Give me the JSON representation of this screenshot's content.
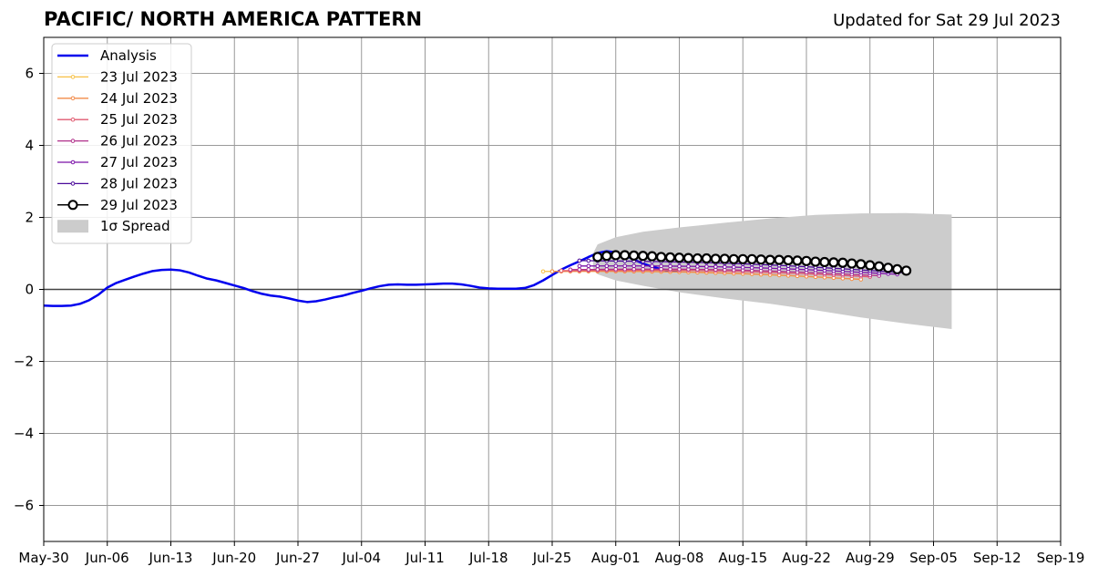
{
  "header": {
    "title": "PACIFIC/ NORTH AMERICA PATTERN",
    "updated": "Updated for Sat 29 Jul 2023"
  },
  "chart_data": {
    "type": "line",
    "x_ticks": [
      "May-30",
      "Jun-06",
      "Jun-13",
      "Jun-20",
      "Jun-27",
      "Jul-04",
      "Jul-11",
      "Jul-18",
      "Jul-25",
      "Aug-01",
      "Aug-08",
      "Aug-15",
      "Aug-22",
      "Aug-29",
      "Sep-05",
      "Sep-12",
      "Sep-19"
    ],
    "xlim_days": [
      0,
      112
    ],
    "ylim": [
      -7,
      7
    ],
    "y_ticks": [
      6,
      4,
      2,
      0,
      -2,
      -4,
      -6
    ],
    "y_tick_labels": [
      "6",
      "4",
      "2",
      "0",
      "−2",
      "−4",
      "−6"
    ],
    "grid": true,
    "legend_position": "upper-left",
    "analysis": {
      "name": "Analysis",
      "color": "#0000ee",
      "points": [
        [
          0,
          -0.45
        ],
        [
          1,
          -0.46
        ],
        [
          2,
          -0.46
        ],
        [
          3,
          -0.45
        ],
        [
          4,
          -0.4
        ],
        [
          5,
          -0.3
        ],
        [
          6,
          -0.15
        ],
        [
          7,
          0.05
        ],
        [
          8,
          0.18
        ],
        [
          9,
          0.27
        ],
        [
          10,
          0.36
        ],
        [
          11,
          0.44
        ],
        [
          12,
          0.51
        ],
        [
          13,
          0.54
        ],
        [
          14,
          0.55
        ],
        [
          15,
          0.53
        ],
        [
          16,
          0.47
        ],
        [
          17,
          0.38
        ],
        [
          18,
          0.3
        ],
        [
          19,
          0.25
        ],
        [
          20,
          0.18
        ],
        [
          21,
          0.11
        ],
        [
          22,
          0.04
        ],
        [
          23,
          -0.05
        ],
        [
          24,
          -0.12
        ],
        [
          25,
          -0.17
        ],
        [
          26,
          -0.2
        ],
        [
          27,
          -0.25
        ],
        [
          28,
          -0.31
        ],
        [
          29,
          -0.35
        ],
        [
          30,
          -0.33
        ],
        [
          31,
          -0.28
        ],
        [
          32,
          -0.22
        ],
        [
          33,
          -0.17
        ],
        [
          34,
          -0.1
        ],
        [
          35,
          -0.04
        ],
        [
          36,
          0.03
        ],
        [
          37,
          0.09
        ],
        [
          38,
          0.13
        ],
        [
          39,
          0.14
        ],
        [
          40,
          0.13
        ],
        [
          41,
          0.13
        ],
        [
          42,
          0.14
        ],
        [
          43,
          0.15
        ],
        [
          44,
          0.16
        ],
        [
          45,
          0.16
        ],
        [
          46,
          0.14
        ],
        [
          47,
          0.1
        ],
        [
          48,
          0.05
        ],
        [
          49,
          0.03
        ],
        [
          50,
          0.02
        ],
        [
          51,
          0.02
        ],
        [
          52,
          0.02
        ],
        [
          53,
          0.04
        ],
        [
          54,
          0.12
        ],
        [
          55,
          0.25
        ],
        [
          56,
          0.4
        ],
        [
          57,
          0.55
        ],
        [
          58,
          0.67
        ],
        [
          59,
          0.78
        ],
        [
          60,
          0.9
        ],
        [
          61,
          1.01
        ],
        [
          62,
          1.06
        ],
        [
          63,
          1.03
        ],
        [
          64,
          0.95
        ],
        [
          65,
          0.83
        ],
        [
          66,
          0.72
        ],
        [
          67,
          0.63
        ],
        [
          68,
          0.56
        ],
        [
          69,
          0.52
        ],
        [
          70,
          0.5
        ]
      ]
    },
    "spread": {
      "name": "1σ Spread",
      "color": "#cccccc",
      "upper": [
        [
          60.5,
          1.0
        ],
        [
          61,
          1.25
        ],
        [
          63,
          1.45
        ],
        [
          66,
          1.6
        ],
        [
          70,
          1.72
        ],
        [
          75,
          1.85
        ],
        [
          80,
          1.97
        ],
        [
          85,
          2.07
        ],
        [
          90,
          2.11
        ],
        [
          95,
          2.12
        ],
        [
          100,
          2.08
        ]
      ],
      "lower": [
        [
          100,
          -1.1
        ],
        [
          95,
          -0.95
        ],
        [
          90,
          -0.78
        ],
        [
          85,
          -0.58
        ],
        [
          80,
          -0.4
        ],
        [
          75,
          -0.25
        ],
        [
          70,
          -0.08
        ],
        [
          66,
          0.1
        ],
        [
          63,
          0.25
        ],
        [
          61,
          0.42
        ],
        [
          60.5,
          0.6
        ]
      ]
    },
    "forecasts": [
      {
        "name": "23 Jul 2023",
        "color": "#f7c045",
        "start": 55,
        "end": 90,
        "y0": 0.5,
        "y1": 0.28,
        "markers": "small"
      },
      {
        "name": "24 Jul 2023",
        "color": "#f28b4a",
        "start": 56,
        "end": 90,
        "y0": 0.5,
        "y1": 0.28,
        "markers": "small"
      },
      {
        "name": "25 Jul 2023",
        "color": "#e05a70",
        "start": 57,
        "end": 91,
        "y0": 0.52,
        "y1": 0.35,
        "markers": "small"
      },
      {
        "name": "26 Jul 2023",
        "color": "#b0308a",
        "start": 58,
        "end": 92,
        "y0": 0.55,
        "y1": 0.38,
        "markers": "small"
      },
      {
        "name": "27 Jul 2023",
        "color": "#7b10a8",
        "start": 59,
        "end": 94,
        "y0": 0.65,
        "y1": 0.42,
        "markers": "small"
      },
      {
        "name": "28 Jul 2023",
        "color": "#4b0a9a",
        "start": 59,
        "end": 95,
        "y0": 0.8,
        "y1": 0.46,
        "markers": "small"
      },
      {
        "name": "29 Jul 2023",
        "color": "#000000",
        "start": 61,
        "end": 95,
        "points": [
          0.9,
          0.93,
          0.95,
          0.95,
          0.94,
          0.93,
          0.92,
          0.9,
          0.89,
          0.88,
          0.87,
          0.86,
          0.86,
          0.85,
          0.85,
          0.84,
          0.84,
          0.84,
          0.83,
          0.82,
          0.82,
          0.81,
          0.8,
          0.79,
          0.77,
          0.76,
          0.75,
          0.74,
          0.72,
          0.7,
          0.67,
          0.64,
          0.6,
          0.56,
          0.52,
          0.5
        ],
        "markers": "large"
      }
    ]
  }
}
